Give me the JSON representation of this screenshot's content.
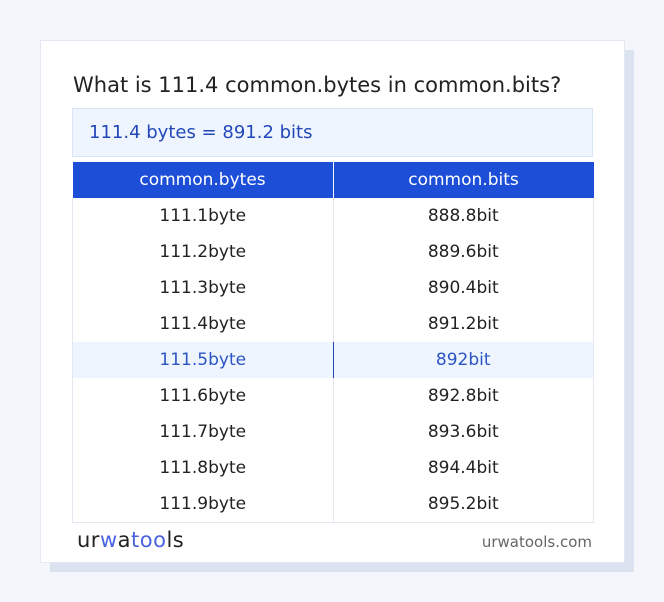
{
  "title": "What is 111.4 common.bytes in common.bits?",
  "summary": "111.4 bytes = 891.2 bits",
  "table": {
    "headers": [
      "common.bytes",
      "common.bits"
    ],
    "rows": [
      [
        "111.1byte",
        "888.8bit"
      ],
      [
        "111.2byte",
        "889.6bit"
      ],
      [
        "111.3byte",
        "890.4bit"
      ],
      [
        "111.4byte",
        "891.2bit"
      ],
      [
        "111.5byte",
        "892bit"
      ],
      [
        "111.6byte",
        "892.8bit"
      ],
      [
        "111.7byte",
        "893.6bit"
      ],
      [
        "111.8byte",
        "894.4bit"
      ],
      [
        "111.9byte",
        "895.2bit"
      ]
    ],
    "highlighted_row": 4
  },
  "footer": {
    "logo": {
      "a": "ur",
      "b": "w",
      "c": "a",
      "d": "too",
      "e": "ls"
    },
    "site": "urwatools.com"
  },
  "colors": {
    "accent": "#1d4ed8",
    "highlight_bg": "#eef5fe",
    "text_link": "#2147b8"
  }
}
